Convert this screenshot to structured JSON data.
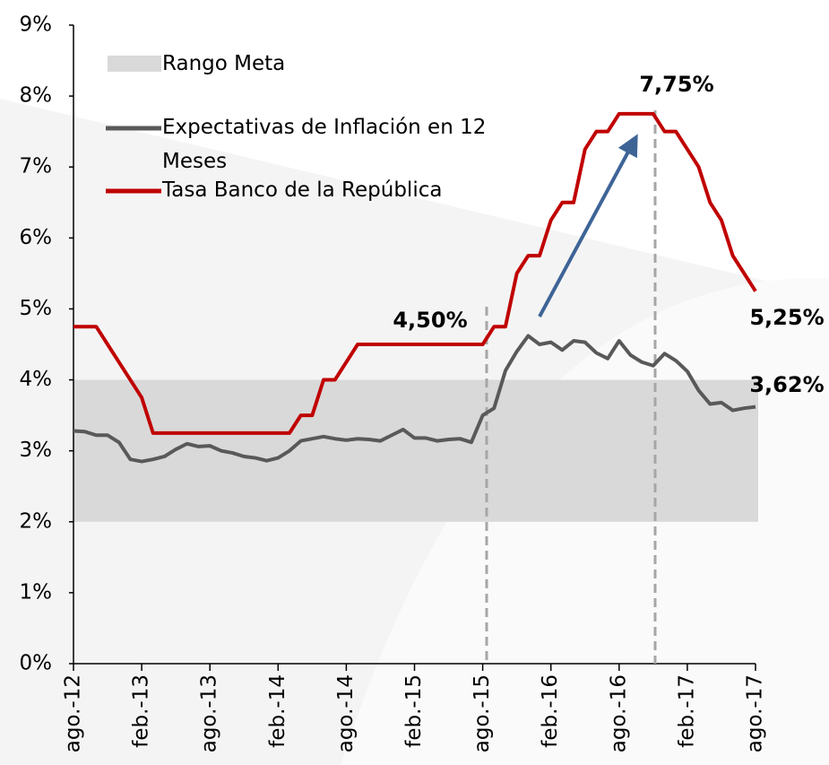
{
  "chart_data": {
    "type": "line",
    "categories": [
      "ago.-12",
      null,
      null,
      null,
      null,
      null,
      "feb.-13",
      null,
      null,
      null,
      null,
      null,
      "ago.-13",
      null,
      null,
      null,
      null,
      null,
      "feb.-14",
      null,
      null,
      null,
      null,
      null,
      "ago.-14",
      null,
      null,
      null,
      null,
      null,
      "feb.-15",
      null,
      null,
      null,
      null,
      null,
      "ago.-15",
      null,
      null,
      null,
      null,
      null,
      "feb.-16",
      null,
      null,
      null,
      null,
      null,
      "ago.-16",
      null,
      null,
      null,
      null,
      null,
      "feb.-17",
      null,
      null,
      null,
      null,
      null,
      "ago.-17"
    ],
    "band": {
      "name": "Rango Meta",
      "range": [
        2,
        4
      ],
      "color": "#d9d9d9"
    },
    "series": [
      {
        "name": "Expectativas de Inflación en 12 Meses",
        "color": "#595959",
        "values": [
          3.28,
          3.27,
          3.22,
          3.22,
          3.12,
          2.88,
          2.85,
          2.88,
          2.92,
          3.02,
          3.1,
          3.06,
          3.07,
          3.0,
          2.97,
          2.92,
          2.9,
          2.86,
          2.9,
          3.0,
          3.14,
          3.17,
          3.2,
          3.17,
          3.15,
          3.17,
          3.16,
          3.14,
          3.22,
          3.3,
          3.18,
          3.18,
          3.14,
          3.16,
          3.17,
          3.12,
          3.5,
          3.6,
          4.13,
          4.4,
          4.62,
          4.5,
          4.53,
          4.42,
          4.55,
          4.53,
          4.38,
          4.3,
          4.55,
          4.35,
          4.25,
          4.2,
          4.37,
          4.27,
          4.12,
          3.85,
          3.66,
          3.68,
          3.57,
          3.6,
          3.62
        ]
      },
      {
        "name": "Tasa Banco de la República",
        "color": "#c00000",
        "values": [
          4.75,
          4.75,
          4.75,
          4.5,
          4.25,
          4.0,
          3.75,
          3.25,
          3.25,
          3.25,
          3.25,
          3.25,
          3.25,
          3.25,
          3.25,
          3.25,
          3.25,
          3.25,
          3.25,
          3.25,
          3.5,
          3.5,
          4.0,
          4.0,
          4.25,
          4.5,
          4.5,
          4.5,
          4.5,
          4.5,
          4.5,
          4.5,
          4.5,
          4.5,
          4.5,
          4.5,
          4.5,
          4.75,
          4.75,
          5.5,
          5.75,
          5.75,
          6.25,
          6.5,
          6.5,
          7.25,
          7.5,
          7.5,
          7.75,
          7.75,
          7.75,
          7.75,
          7.5,
          7.5,
          7.25,
          7.0,
          6.5,
          6.25,
          5.75,
          5.5,
          5.25
        ]
      }
    ],
    "annotations": [
      {
        "text": "4,50%",
        "color": "#c00000"
      },
      {
        "text": "7,75%",
        "color": "#c00000"
      },
      {
        "text": "5,25%",
        "color": "#c00000"
      },
      {
        "text": "3,62%",
        "color": "#8c8c8c"
      }
    ],
    "ylim": [
      0,
      9
    ],
    "yticks": [
      {
        "value": 0,
        "label": "0%"
      },
      {
        "value": 1,
        "label": "1%"
      },
      {
        "value": 2,
        "label": "2%"
      },
      {
        "value": 3,
        "label": "3%"
      },
      {
        "value": 4,
        "label": "4%"
      },
      {
        "value": 5,
        "label": "5%"
      },
      {
        "value": 6,
        "label": "6%"
      },
      {
        "value": 7,
        "label": "7%"
      },
      {
        "value": 8,
        "label": "8%"
      },
      {
        "value": 9,
        "label": "9%"
      }
    ]
  }
}
